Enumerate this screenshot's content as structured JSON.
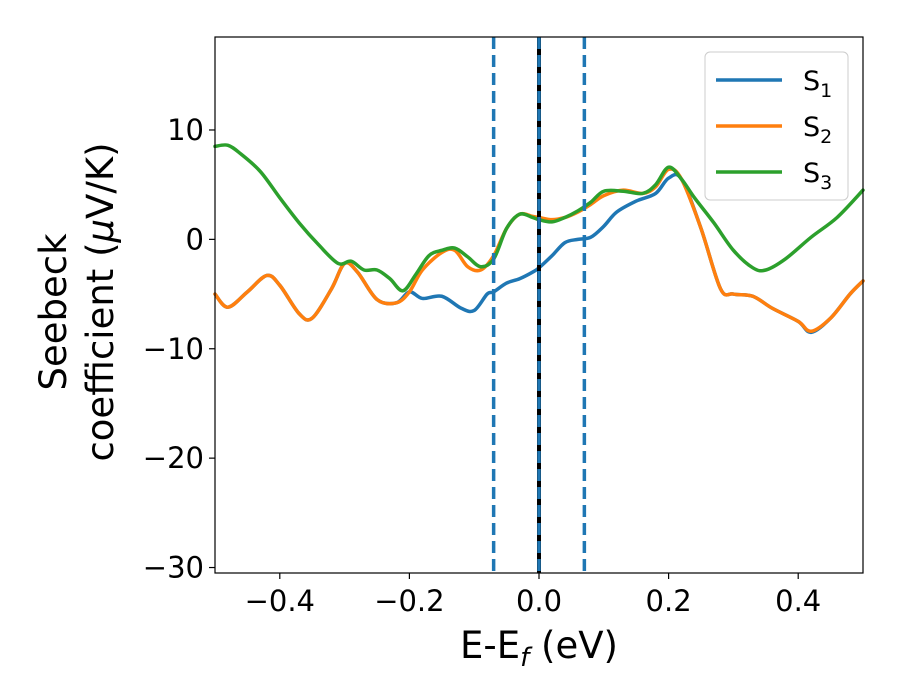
{
  "chart_data": {
    "type": "line",
    "xlabel": "E-E",
    "xlabel_sub": "f",
    "xlabel_unit": " (eV)",
    "ylabel_line1": "Seebeck",
    "ylabel_line2_pre": "coefficient  (",
    "ylabel_mu": "μ",
    "ylabel_line2_post": "V/K)",
    "xlim": [
      -0.5,
      0.5
    ],
    "ylim": [
      -30.5,
      18.5
    ],
    "xticks": [
      -0.4,
      -0.2,
      0.0,
      0.2,
      0.4
    ],
    "xtick_labels": [
      "−0.4",
      "−0.2",
      "0.0",
      "0.2",
      "0.4"
    ],
    "yticks": [
      -30,
      -20,
      -10,
      0,
      10
    ],
    "ytick_labels": [
      "−30",
      "−20",
      "−10",
      "0",
      "10"
    ],
    "grid": false,
    "legend_position": "top-right",
    "vlines": [
      {
        "x": -0.07,
        "style": "dashed",
        "color": "#1f77b4"
      },
      {
        "x": 0.07,
        "style": "dashed",
        "color": "#1f77b4"
      },
      {
        "x": 0.0,
        "style": "solid",
        "color": "#000000"
      },
      {
        "x": 0.0,
        "style": "dashed",
        "color": "#1f77b4"
      }
    ],
    "series": [
      {
        "name": "S",
        "sub": "1",
        "color": "#1f77b4",
        "x": [
          -0.5,
          -0.48,
          -0.45,
          -0.42,
          -0.4,
          -0.37,
          -0.35,
          -0.32,
          -0.3,
          -0.28,
          -0.25,
          -0.22,
          -0.2,
          -0.18,
          -0.15,
          -0.12,
          -0.1,
          -0.08,
          -0.07,
          -0.05,
          -0.03,
          -0.01,
          0.0,
          0.02,
          0.04,
          0.06,
          0.08,
          0.1,
          0.12,
          0.15,
          0.18,
          0.2,
          0.22,
          0.25,
          0.28,
          0.3,
          0.33,
          0.36,
          0.4,
          0.42,
          0.45,
          0.48,
          0.5
        ],
        "y": [
          -5.0,
          -6.2,
          -4.8,
          -3.3,
          -4.2,
          -6.8,
          -7.2,
          -4.5,
          -2.2,
          -3.0,
          -5.5,
          -5.8,
          -4.8,
          -5.4,
          -5.2,
          -6.3,
          -6.5,
          -5.0,
          -4.8,
          -4.0,
          -3.6,
          -3.0,
          -2.6,
          -1.5,
          -0.3,
          0.0,
          0.2,
          1.2,
          2.5,
          3.5,
          4.2,
          5.6,
          5.5,
          1.0,
          -4.5,
          -5.0,
          -5.2,
          -6.3,
          -7.5,
          -8.5,
          -7.2,
          -5.0,
          -3.8
        ]
      },
      {
        "name": "S",
        "sub": "2",
        "color": "#ff7f0e",
        "x": [
          -0.5,
          -0.48,
          -0.45,
          -0.42,
          -0.4,
          -0.37,
          -0.35,
          -0.32,
          -0.3,
          -0.28,
          -0.25,
          -0.22,
          -0.2,
          -0.18,
          -0.15,
          -0.13,
          -0.11,
          -0.09,
          -0.07,
          -0.05,
          -0.03,
          -0.01,
          0.0,
          0.02,
          0.04,
          0.06,
          0.08,
          0.1,
          0.13,
          0.16,
          0.18,
          0.2,
          0.22,
          0.25,
          0.28,
          0.3,
          0.33,
          0.36,
          0.4,
          0.42,
          0.45,
          0.48,
          0.5
        ],
        "y": [
          -5.0,
          -6.2,
          -4.8,
          -3.3,
          -4.2,
          -6.8,
          -7.2,
          -4.5,
          -2.2,
          -3.0,
          -5.5,
          -5.8,
          -4.8,
          -2.8,
          -1.2,
          -1.0,
          -2.5,
          -2.8,
          -1.5,
          1.0,
          2.3,
          2.1,
          2.0,
          1.8,
          2.0,
          2.5,
          3.2,
          4.0,
          4.5,
          4.2,
          4.8,
          6.4,
          5.5,
          1.0,
          -4.5,
          -5.0,
          -5.2,
          -6.3,
          -7.5,
          -8.4,
          -7.2,
          -5.0,
          -3.8
        ]
      },
      {
        "name": "S",
        "sub": "3",
        "color": "#2ca02c",
        "x": [
          -0.5,
          -0.48,
          -0.46,
          -0.43,
          -0.4,
          -0.37,
          -0.34,
          -0.31,
          -0.29,
          -0.27,
          -0.25,
          -0.23,
          -0.21,
          -0.19,
          -0.17,
          -0.15,
          -0.13,
          -0.11,
          -0.09,
          -0.07,
          -0.05,
          -0.03,
          -0.01,
          0.0,
          0.02,
          0.04,
          0.06,
          0.08,
          0.1,
          0.13,
          0.16,
          0.18,
          0.2,
          0.22,
          0.24,
          0.27,
          0.3,
          0.33,
          0.35,
          0.38,
          0.42,
          0.46,
          0.5
        ],
        "y": [
          8.5,
          8.6,
          7.8,
          6.2,
          3.8,
          1.5,
          -0.5,
          -2.2,
          -2.0,
          -2.8,
          -2.8,
          -3.6,
          -4.7,
          -3.2,
          -1.5,
          -1.0,
          -0.8,
          -1.6,
          -2.5,
          -1.8,
          1.0,
          2.3,
          2.0,
          1.8,
          1.6,
          2.0,
          2.6,
          3.4,
          4.4,
          4.4,
          4.2,
          5.0,
          6.6,
          5.5,
          3.8,
          1.5,
          -1.0,
          -2.6,
          -2.8,
          -1.8,
          0.2,
          2.0,
          4.5
        ]
      }
    ]
  }
}
